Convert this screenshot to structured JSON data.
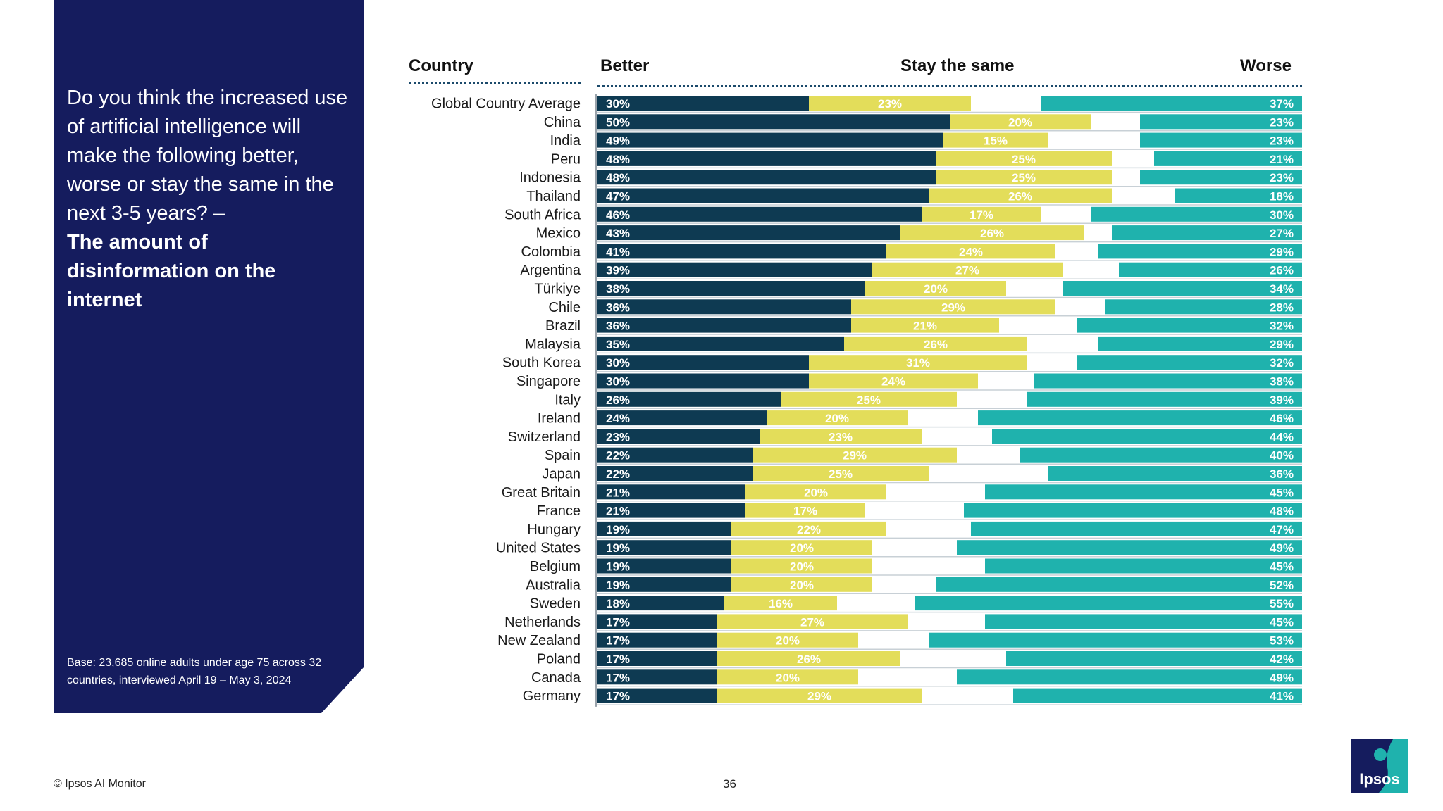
{
  "question": {
    "text": "Do you think the increased use of artificial intelligence will make the following better, worse or stay the same in the next 3-5 years? –",
    "bold": "The amount of disinformation on the internet"
  },
  "base_note": "Base: 23,685 online adults under age 75 across 32 countries, interviewed April 19 – May 3, 2024",
  "footer": {
    "copyright": "© Ipsos AI Monitor",
    "page_number": "36",
    "logo_text": "Ipsos"
  },
  "colors": {
    "panel": "#151c5e",
    "better": "#0e3a52",
    "same": "#e3dd5a",
    "worse": "#1fb2ad"
  },
  "chart_data": {
    "type": "bar",
    "orientation": "horizontal-stacked",
    "headers": {
      "country": "Country",
      "better": "Better",
      "same": "Stay the same",
      "worse": "Worse"
    },
    "categories": [
      "Global Country Average",
      "China",
      "India",
      "Peru",
      "Indonesia",
      "Thailand",
      "South Africa",
      "Mexico",
      "Colombia",
      "Argentina",
      "Türkiye",
      "Chile",
      "Brazil",
      "Malaysia",
      "South Korea",
      "Singapore",
      "Italy",
      "Ireland",
      "Switzerland",
      "Spain",
      "Japan",
      "Great Britain",
      "France",
      "Hungary",
      "United States",
      "Belgium",
      "Australia",
      "Sweden",
      "Netherlands",
      "New Zealand",
      "Poland",
      "Canada",
      "Germany"
    ],
    "series": [
      {
        "name": "Better",
        "values": [
          30,
          50,
          49,
          48,
          48,
          47,
          46,
          43,
          41,
          39,
          38,
          36,
          36,
          35,
          30,
          30,
          26,
          24,
          23,
          22,
          22,
          21,
          21,
          19,
          19,
          19,
          19,
          18,
          17,
          17,
          17,
          17,
          17
        ]
      },
      {
        "name": "Stay the same",
        "values": [
          23,
          20,
          15,
          25,
          25,
          26,
          17,
          26,
          24,
          27,
          20,
          29,
          21,
          26,
          31,
          24,
          25,
          20,
          23,
          29,
          25,
          20,
          17,
          22,
          20,
          20,
          20,
          16,
          27,
          20,
          26,
          20,
          29
        ]
      },
      {
        "name": "Worse",
        "values": [
          37,
          23,
          23,
          21,
          23,
          18,
          30,
          27,
          29,
          26,
          34,
          28,
          32,
          29,
          32,
          38,
          39,
          46,
          44,
          40,
          36,
          45,
          48,
          47,
          49,
          45,
          52,
          55,
          45,
          53,
          42,
          49,
          41
        ]
      }
    ],
    "xlim": [
      0,
      100
    ],
    "value_suffix": "%"
  }
}
